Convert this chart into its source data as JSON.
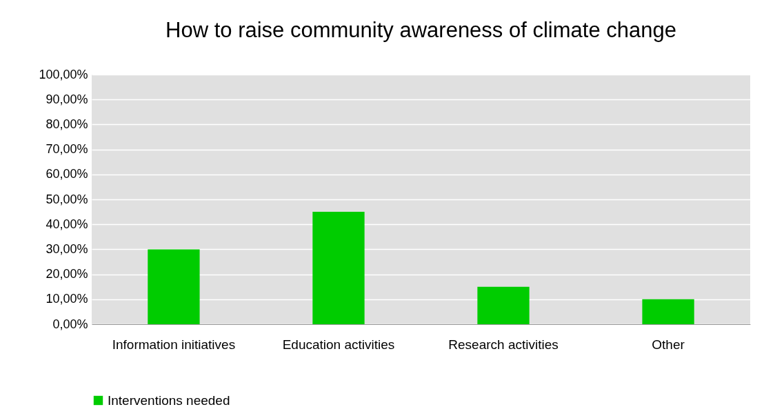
{
  "chart_data": {
    "type": "bar",
    "title": "How to raise community awareness of climate change",
    "categories": [
      "Information initiatives",
      "Education activities",
      "Research activities",
      "Other"
    ],
    "series": [
      {
        "name": "Interventions needed",
        "color": "#00cc00",
        "values": [
          30,
          45,
          15,
          10
        ]
      }
    ],
    "ylim": [
      0,
      100
    ],
    "yticks": [
      {
        "value": 0,
        "label": "0,00%"
      },
      {
        "value": 10,
        "label": "10,00%"
      },
      {
        "value": 20,
        "label": "20,00%"
      },
      {
        "value": 30,
        "label": "30,00%"
      },
      {
        "value": 40,
        "label": "40,00%"
      },
      {
        "value": 50,
        "label": "50,00%"
      },
      {
        "value": 60,
        "label": "60,00%"
      },
      {
        "value": 70,
        "label": "70,00%"
      },
      {
        "value": 80,
        "label": "80,00%"
      },
      {
        "value": 90,
        "label": "90,00%"
      },
      {
        "value": 100,
        "label": "100,00%"
      }
    ],
    "grid": "y",
    "legend": "bottom"
  }
}
